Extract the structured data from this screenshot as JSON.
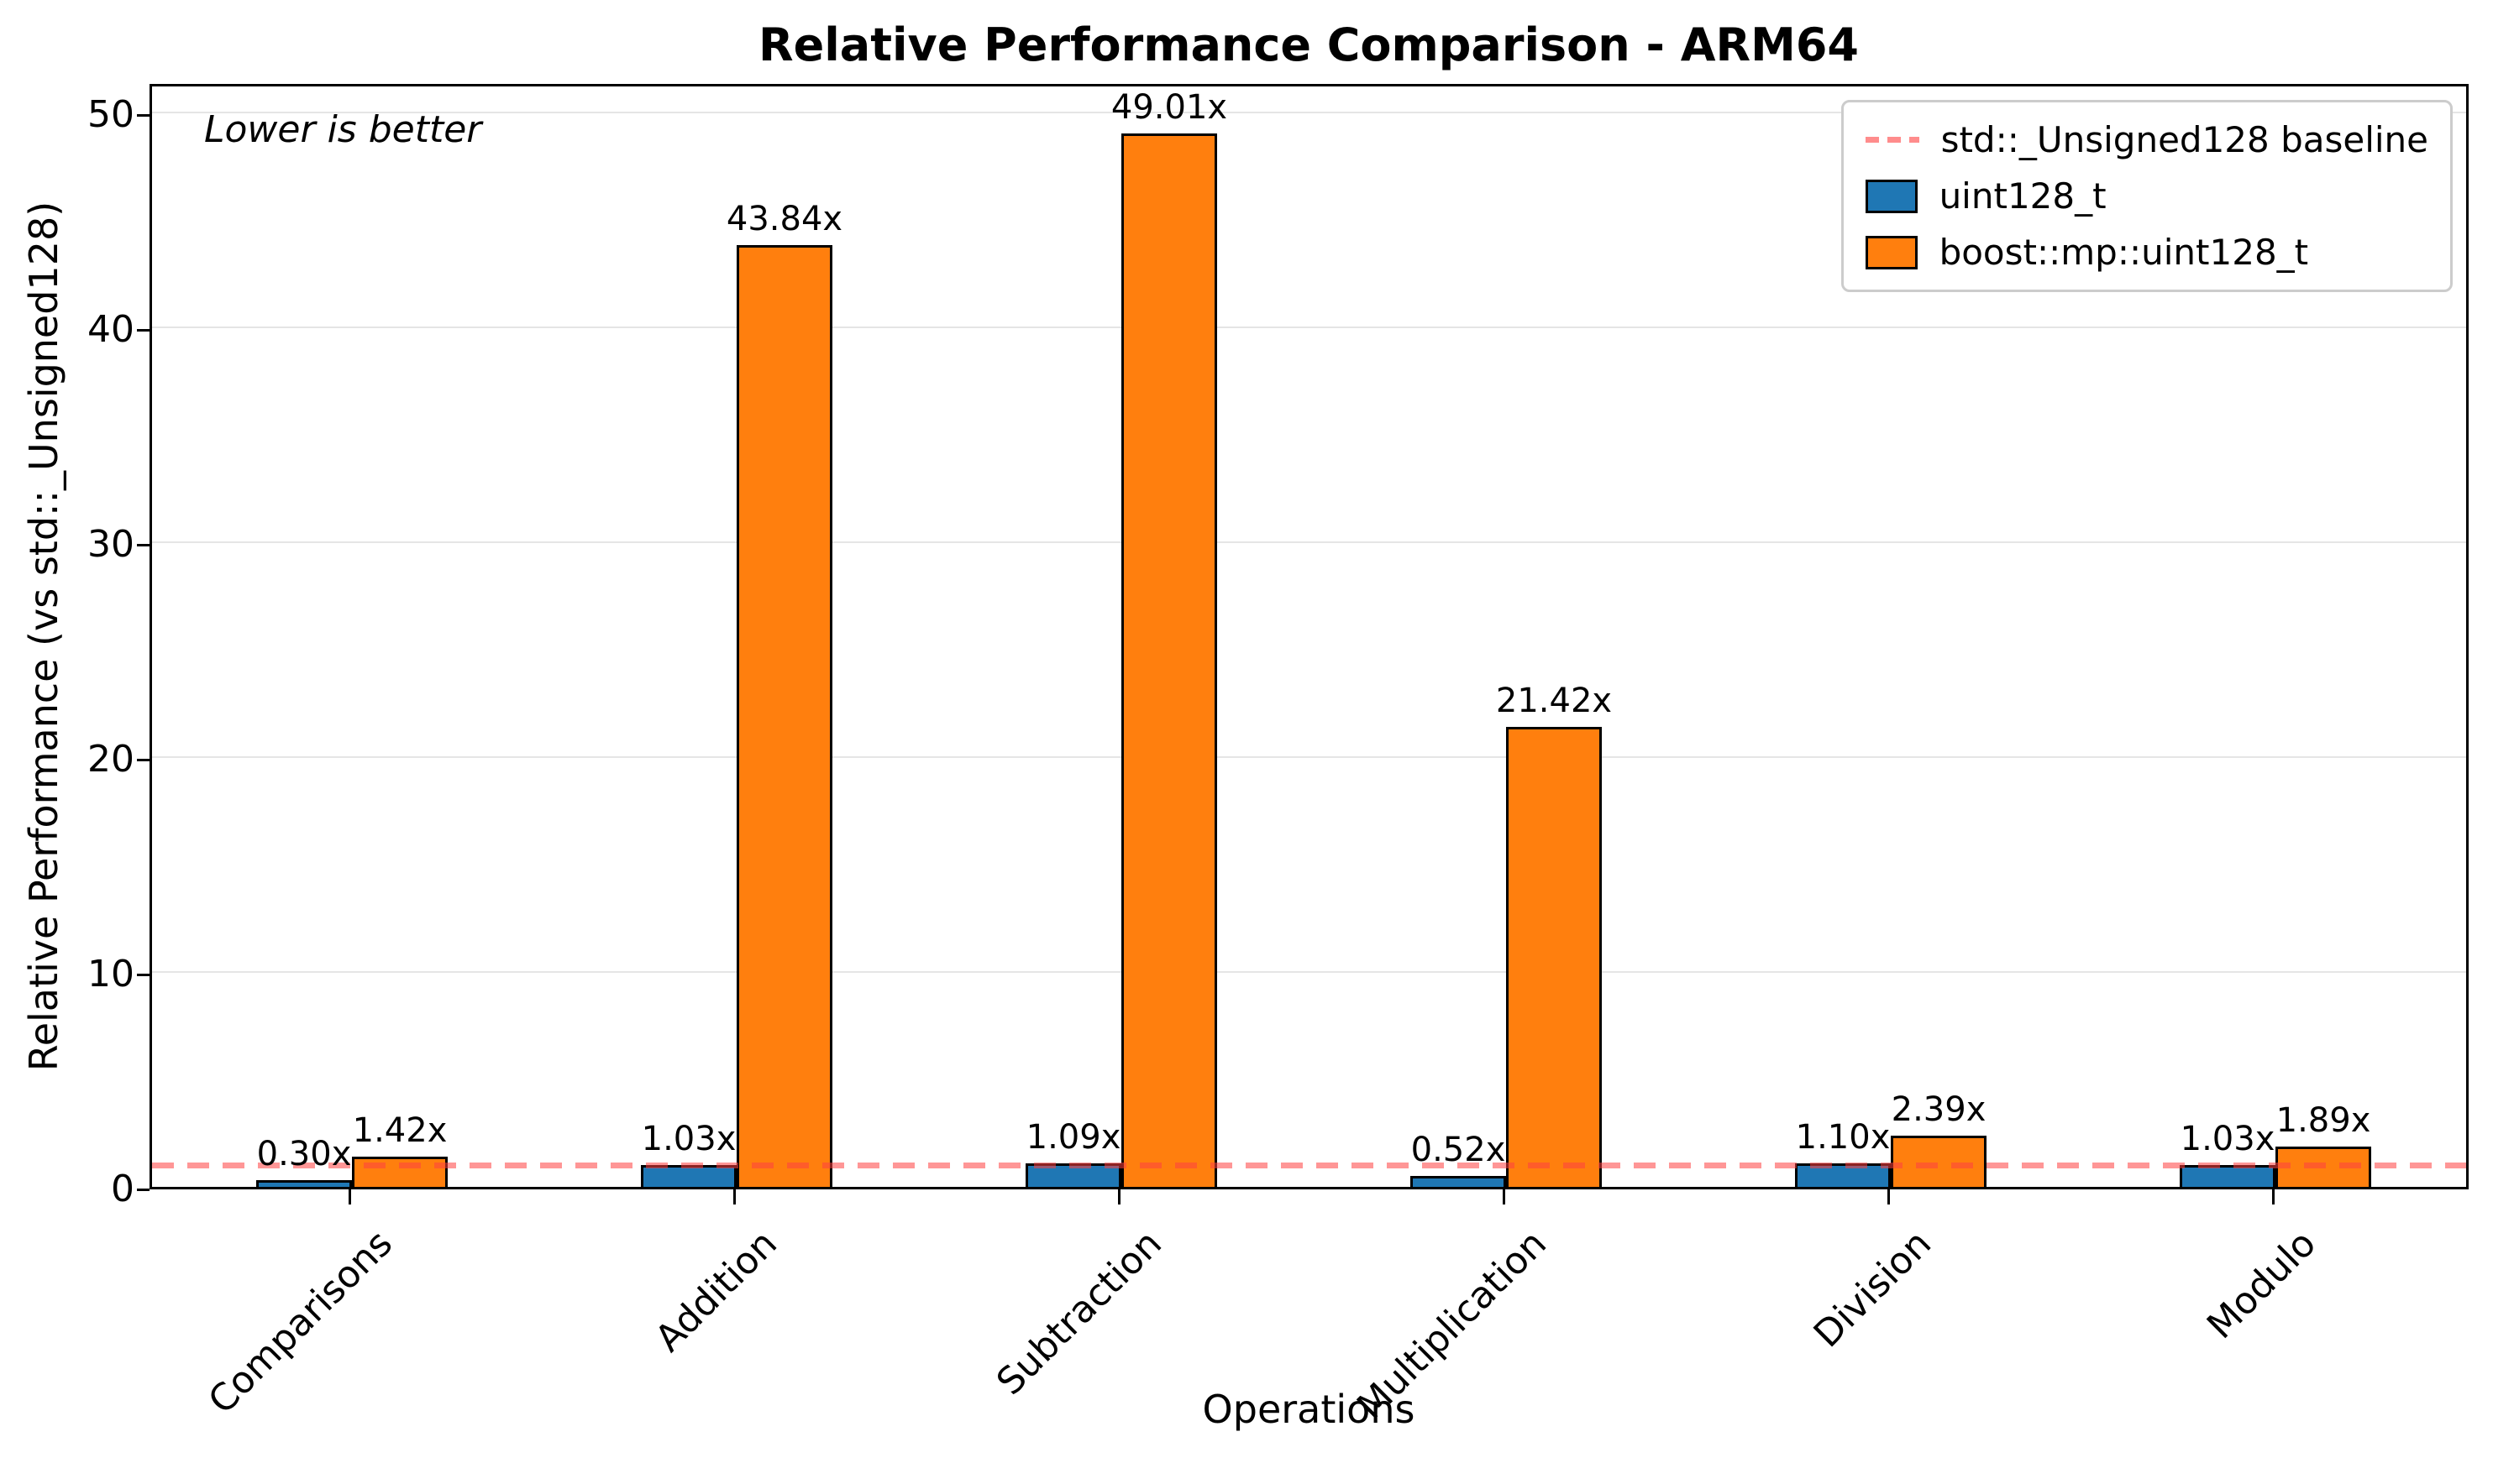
{
  "title": "Relative Performance Comparison - ARM64",
  "annotation": "Lower is better",
  "axes": {
    "xlabel": "Operations",
    "ylabel": "Relative Performance (vs std::_Unsigned128)",
    "ytick_labels": [
      "0",
      "10",
      "20",
      "30",
      "40",
      "50"
    ]
  },
  "legend": {
    "baseline_label": "std::_Unsigned128 baseline",
    "series1_label": "uint128_t",
    "series2_label": "boost::mp::uint128_t"
  },
  "colors": {
    "series1": "#1f77b4",
    "series2": "#ff7f0e",
    "baseline": "#ff4040",
    "grid": "#e5e5e5"
  },
  "chart_data": {
    "type": "bar",
    "title": "Relative Performance Comparison - ARM64",
    "xlabel": "Operations",
    "ylabel": "Relative Performance (vs std::_Unsigned128)",
    "annotation": "Lower is better",
    "categories": [
      "Comparisons",
      "Addition",
      "Subtraction",
      "Multiplication",
      "Division",
      "Modulo"
    ],
    "series": [
      {
        "name": "uint128_t",
        "color": "#1f77b4",
        "values": [
          0.3,
          1.03,
          1.09,
          0.52,
          1.1,
          1.03
        ],
        "labels": [
          "0.30x",
          "1.03x",
          "1.09x",
          "0.52x",
          "1.10x",
          "1.03x"
        ]
      },
      {
        "name": "boost::mp::uint128_t",
        "color": "#ff7f0e",
        "values": [
          1.42,
          43.84,
          49.01,
          21.42,
          2.39,
          1.89
        ],
        "labels": [
          "1.42x",
          "43.84x",
          "49.01x",
          "21.42x",
          "2.39x",
          "1.89x"
        ]
      }
    ],
    "baseline": {
      "value": 1.0,
      "label": "std::_Unsigned128 baseline",
      "color": "#ff4040"
    },
    "yticks": [
      0,
      10,
      20,
      30,
      40,
      50
    ],
    "ylim": [
      0,
      51.4
    ],
    "grid": "horizontal",
    "legend_position": "upper right",
    "lower_is_better": true
  }
}
